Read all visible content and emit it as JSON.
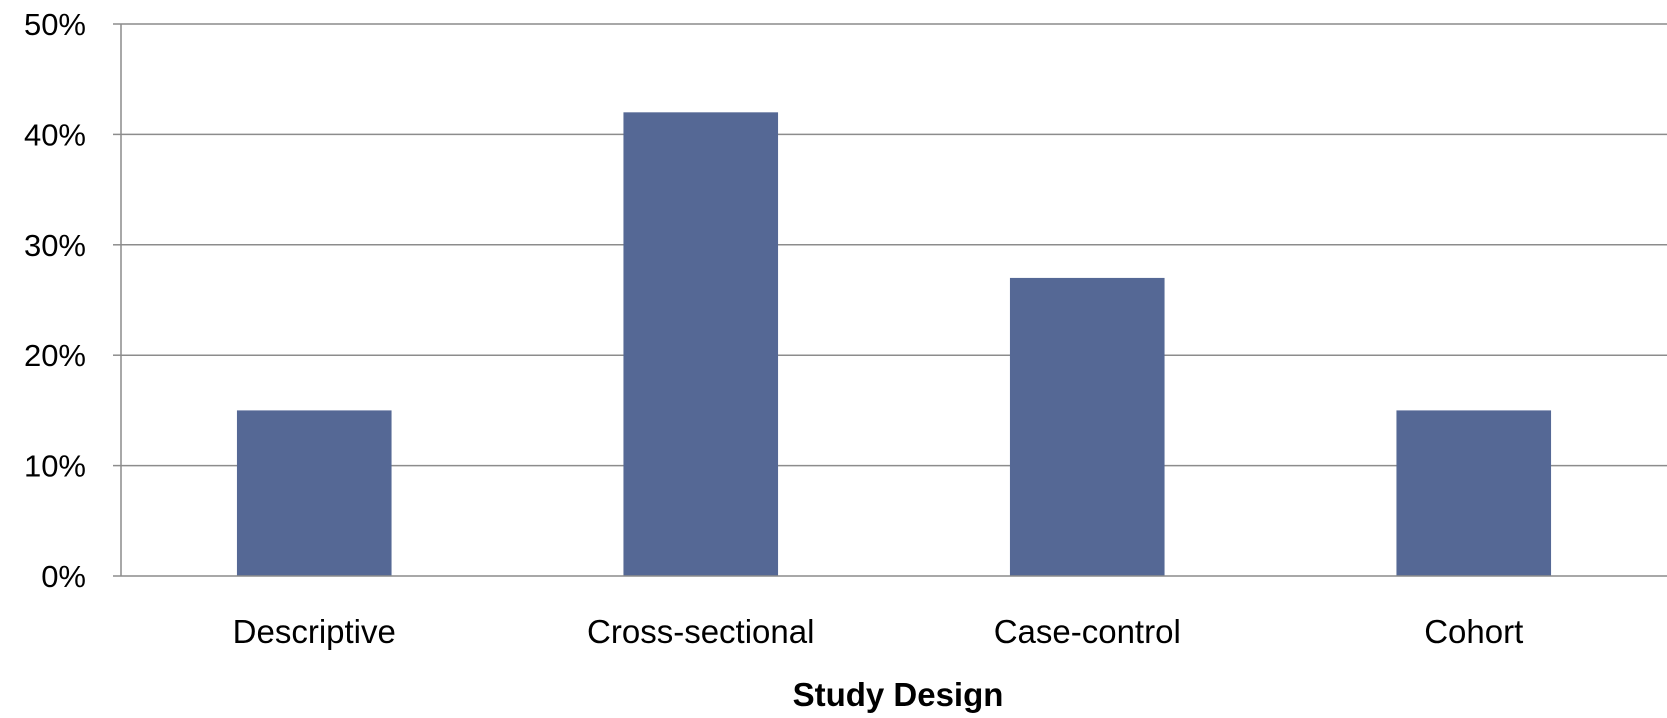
{
  "chart_data": {
    "type": "bar",
    "categories": [
      "Descriptive",
      "Cross-sectional",
      "Case-control",
      "Cohort"
    ],
    "values": [
      15,
      42,
      27,
      15
    ],
    "ylabel": "",
    "xlabel": "Study Design",
    "ylim": [
      0,
      50
    ],
    "yticks": [
      "0%",
      "10%",
      "20%",
      "30%",
      "40%",
      "50%"
    ],
    "ytick_values": [
      0,
      10,
      20,
      30,
      40,
      50
    ],
    "grid": true,
    "legend": "none",
    "bar_color": "#556895"
  }
}
